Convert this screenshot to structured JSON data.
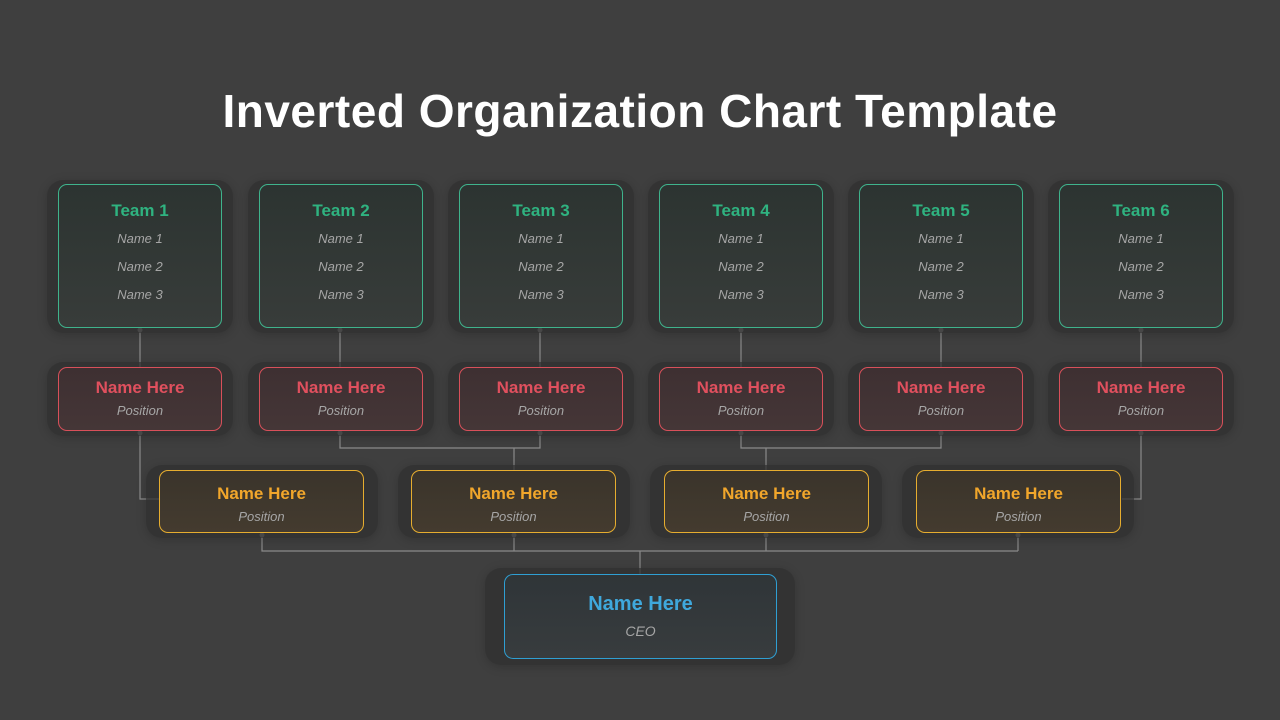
{
  "title": "Inverted Organization Chart Template",
  "colors": {
    "background": "#3f3f3f",
    "team": "#2fb380",
    "manager": "#e0505e",
    "lead": "#f1a62b",
    "ceo": "#3fa8dc",
    "muted_text": "#a6a6a6",
    "connector": "#8a8a8a"
  },
  "teams": [
    {
      "name": "Team 1",
      "members": [
        "Name 1",
        "Name 2",
        "Name 3"
      ]
    },
    {
      "name": "Team 2",
      "members": [
        "Name 1",
        "Name 2",
        "Name 3"
      ]
    },
    {
      "name": "Team 3",
      "members": [
        "Name 1",
        "Name 2",
        "Name 3"
      ]
    },
    {
      "name": "Team 4",
      "members": [
        "Name 1",
        "Name 2",
        "Name 3"
      ]
    },
    {
      "name": "Team 5",
      "members": [
        "Name 1",
        "Name 2",
        "Name 3"
      ]
    },
    {
      "name": "Team 6",
      "members": [
        "Name 1",
        "Name 2",
        "Name 3"
      ]
    }
  ],
  "managers": [
    {
      "name": "Name Here",
      "position": "Position"
    },
    {
      "name": "Name Here",
      "position": "Position"
    },
    {
      "name": "Name Here",
      "position": "Position"
    },
    {
      "name": "Name Here",
      "position": "Position"
    },
    {
      "name": "Name Here",
      "position": "Position"
    },
    {
      "name": "Name Here",
      "position": "Position"
    }
  ],
  "leads": [
    {
      "name": "Name Here",
      "position": "Position"
    },
    {
      "name": "Name Here",
      "position": "Position"
    },
    {
      "name": "Name Here",
      "position": "Position"
    },
    {
      "name": "Name Here",
      "position": "Position"
    }
  ],
  "ceo": {
    "name": "Name Here",
    "position": "CEO"
  }
}
